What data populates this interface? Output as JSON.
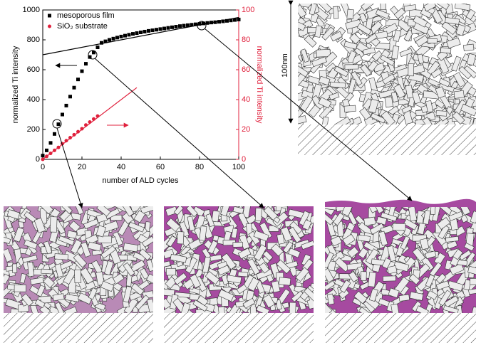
{
  "chart_data": {
    "type": "scatter",
    "x_label": "number of ALD cycles",
    "y_label": "normalized Ti intensity",
    "y2_label": "normalized Ti intensity",
    "xlim": [
      0,
      100
    ],
    "xticks": [
      0,
      20,
      40,
      60,
      80,
      100
    ],
    "ylim": [
      0,
      1000
    ],
    "yticks": [
      0,
      200,
      400,
      600,
      800,
      1000
    ],
    "y2lim": [
      0,
      100
    ],
    "y2ticks": [
      0,
      20,
      40,
      60,
      80,
      100
    ],
    "series": [
      {
        "name": "mesoporous film",
        "color": "#000000",
        "marker": "square",
        "x": [
          0,
          2,
          4,
          6,
          8,
          10,
          12,
          14,
          16,
          18,
          20,
          22,
          24,
          26,
          28,
          30,
          32,
          34,
          36,
          38,
          40,
          42,
          44,
          46,
          48,
          50,
          52,
          54,
          56,
          58,
          60,
          62,
          64,
          66,
          68,
          70,
          72,
          74,
          76,
          78,
          80,
          82,
          84,
          86,
          88,
          90,
          92,
          94,
          96,
          98,
          100
        ],
        "values": [
          25,
          60,
          110,
          170,
          235,
          300,
          360,
          420,
          480,
          535,
          590,
          640,
          685,
          715,
          750,
          780,
          790,
          800,
          808,
          815,
          822,
          828,
          834,
          840,
          845,
          850,
          855,
          860,
          864,
          868,
          872,
          876,
          880,
          884,
          888,
          892,
          895,
          898,
          901,
          904,
          907,
          910,
          913,
          916,
          918,
          921,
          924,
          927,
          930,
          933,
          936
        ]
      },
      {
        "name": "SiO₂ substrate",
        "color": "#e0203c",
        "marker": "circle",
        "axis": "y2",
        "x": [
          0,
          2,
          4,
          6,
          8,
          10,
          12,
          14,
          16,
          18,
          20,
          22,
          24,
          26,
          28
        ],
        "values": [
          0,
          2,
          4,
          6,
          8,
          10.5,
          12.5,
          14.5,
          16.5,
          18.5,
          20.5,
          23,
          25,
          27,
          29
        ]
      }
    ],
    "fit_lines": [
      {
        "color": "#000000",
        "x": [
          0,
          100
        ],
        "values": [
          700,
          950
        ]
      },
      {
        "color": "#e0203c",
        "axis": "y2",
        "x": [
          0,
          48
        ],
        "values": [
          0,
          48
        ]
      }
    ]
  },
  "scale_label": "100nm"
}
